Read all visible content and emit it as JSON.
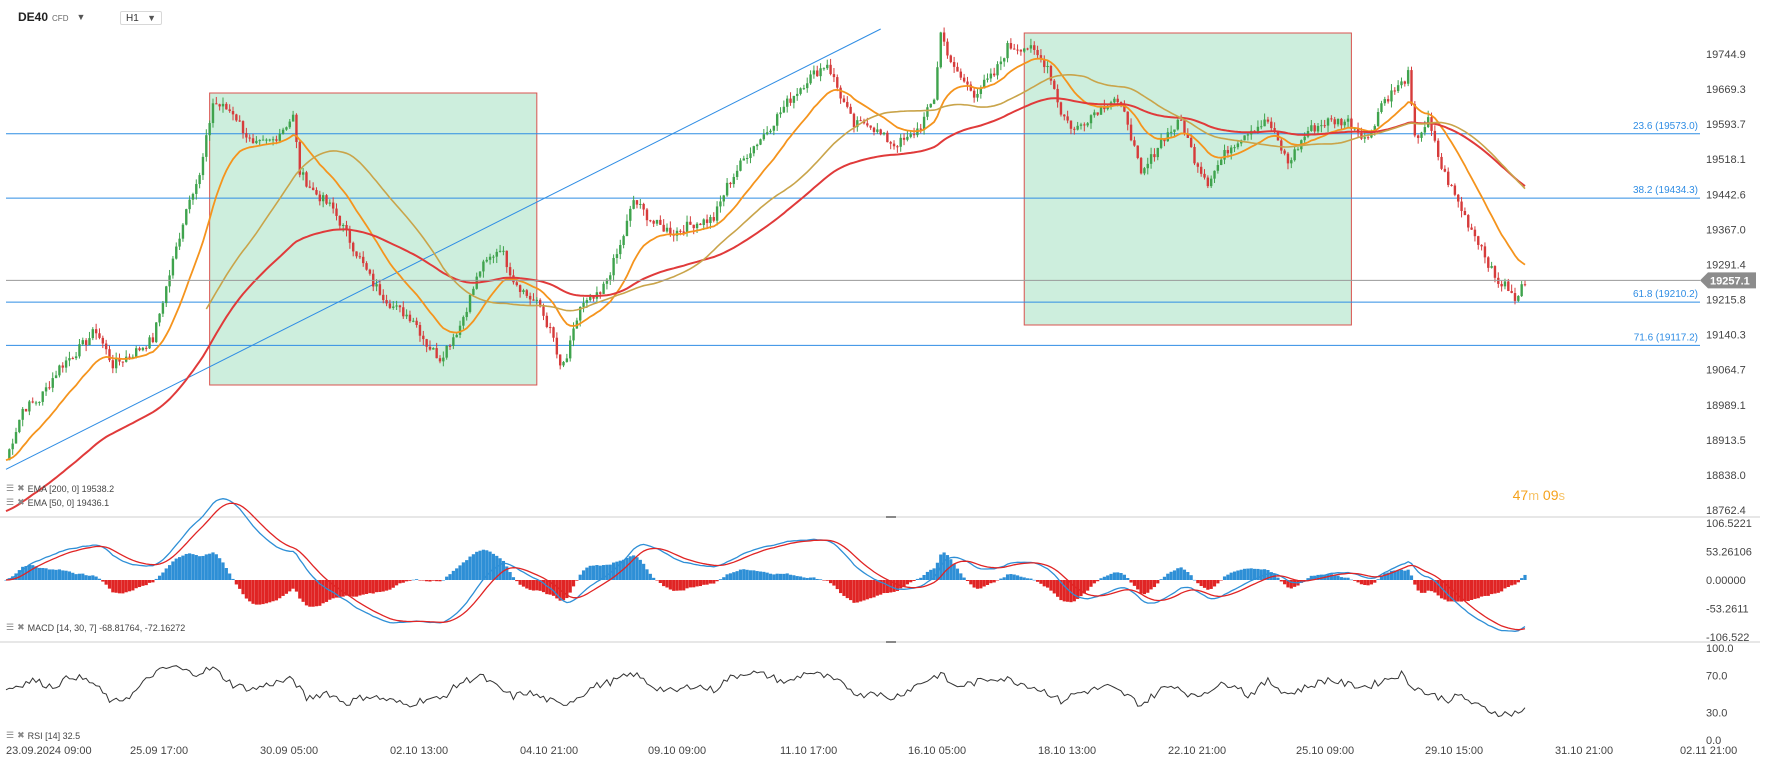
{
  "header": {
    "symbol": "DE40",
    "instrument_type": "CFD",
    "timeframe": "H1"
  },
  "timer": {
    "minutes": "47",
    "min_unit": "m",
    "seconds": "09",
    "sec_unit": "s"
  },
  "legends": {
    "ema200": "EMA [200, 0] 19538.2",
    "ema50": "EMA [50, 0] 19436.1",
    "macd": "MACD [14, 30, 7] -68.81764, -72.16272",
    "rsi": "RSI [14] 32.5"
  },
  "colors": {
    "up": "#3fa34d",
    "down": "#d63b3b",
    "ema50": "#f5941d",
    "ema200": "#e03a3a",
    "slow_ma": "#c9a44a",
    "fib": "#2f8de4",
    "zone_fill": "#cdeedd",
    "zone_border": "#d9534f",
    "macd_pos": "#2e8fd6",
    "macd_neg": "#e02424",
    "rsi": "#333333"
  },
  "chart_data": [
    {
      "type": "candlestick",
      "instrument": "DE40",
      "timeframe": "H1",
      "y_axis_ticks": [
        "19744.9",
        "19669.3",
        "19593.7",
        "19518.1",
        "19442.6",
        "19367.0",
        "19291.4",
        "19215.8",
        "19140.3",
        "19064.7",
        "18989.1",
        "18913.5",
        "18838.0",
        "18762.4"
      ],
      "ylim": [
        18762.4,
        19744.9
      ],
      "last_price": "19257.1",
      "x_axis_ticks": [
        "23.09.2024  09:00",
        "25.09  17:00",
        "30.09  05:00",
        "02.10  13:00",
        "04.10  21:00",
        "09.10  09:00",
        "11.10  17:00",
        "16.10  05:00",
        "18.10  13:00",
        "22.10  21:00",
        "25.10  09:00",
        "29.10  15:00",
        "31.10  21:00",
        "02.11  21:00"
      ],
      "close_path": [
        [
          0,
          18870
        ],
        [
          5,
          18980
        ],
        [
          10,
          19000
        ],
        [
          16,
          19070
        ],
        [
          22,
          19110
        ],
        [
          27,
          19150
        ],
        [
          32,
          19075
        ],
        [
          38,
          19100
        ],
        [
          44,
          19130
        ],
        [
          49,
          19270
        ],
        [
          55,
          19440
        ],
        [
          58,
          19480
        ],
        [
          62,
          19640
        ],
        [
          68,
          19620
        ],
        [
          74,
          19545
        ],
        [
          80,
          19560
        ],
        [
          86,
          19610
        ],
        [
          88,
          19490
        ],
        [
          92,
          19450
        ],
        [
          98,
          19410
        ],
        [
          104,
          19330
        ],
        [
          110,
          19250
        ],
        [
          116,
          19200
        ],
        [
          122,
          19175
        ],
        [
          126,
          19120
        ],
        [
          130,
          19090
        ],
        [
          136,
          19160
        ],
        [
          142,
          19280
        ],
        [
          148,
          19330
        ],
        [
          152,
          19260
        ],
        [
          156,
          19225
        ],
        [
          160,
          19200
        ],
        [
          164,
          19130
        ],
        [
          166,
          19065
        ],
        [
          168,
          19090
        ],
        [
          172,
          19200
        ],
        [
          178,
          19225
        ],
        [
          184,
          19330
        ],
        [
          188,
          19430
        ],
        [
          194,
          19380
        ],
        [
          200,
          19360
        ],
        [
          206,
          19380
        ],
        [
          212,
          19390
        ],
        [
          216,
          19460
        ],
        [
          222,
          19530
        ],
        [
          228,
          19580
        ],
        [
          234,
          19640
        ],
        [
          240,
          19690
        ],
        [
          246,
          19725
        ],
        [
          250,
          19655
        ],
        [
          254,
          19590
        ],
        [
          258,
          19600
        ],
        [
          262,
          19570
        ],
        [
          266,
          19550
        ],
        [
          270,
          19560
        ],
        [
          274,
          19590
        ],
        [
          278,
          19650
        ],
        [
          280,
          19790
        ],
        [
          284,
          19710
        ],
        [
          290,
          19660
        ],
        [
          296,
          19700
        ],
        [
          300,
          19760
        ],
        [
          306,
          19760
        ],
        [
          312,
          19720
        ],
        [
          316,
          19620
        ],
        [
          320,
          19580
        ],
        [
          326,
          19620
        ],
        [
          332,
          19650
        ],
        [
          336,
          19600
        ],
        [
          340,
          19480
        ],
        [
          346,
          19560
        ],
        [
          352,
          19600
        ],
        [
          356,
          19520
        ],
        [
          360,
          19470
        ],
        [
          366,
          19540
        ],
        [
          372,
          19580
        ],
        [
          378,
          19600
        ],
        [
          384,
          19510
        ],
        [
          390,
          19580
        ],
        [
          396,
          19600
        ],
        [
          402,
          19600
        ],
        [
          408,
          19560
        ],
        [
          412,
          19640
        ],
        [
          418,
          19680
        ],
        [
          420,
          19700
        ],
        [
          422,
          19560
        ],
        [
          426,
          19600
        ],
        [
          430,
          19500
        ],
        [
          434,
          19440
        ],
        [
          438,
          19380
        ],
        [
          442,
          19330
        ],
        [
          446,
          19260
        ],
        [
          450,
          19240
        ],
        [
          452,
          19210
        ],
        [
          455,
          19257
        ]
      ]
    },
    {
      "type": "line",
      "name": "MACD [14, 30, 7]",
      "y_axis_ticks": [
        "106.5221",
        "53.26106",
        "0.00000",
        "-53.2611",
        "-106.522"
      ],
      "ylim": [
        -106.522,
        106.5221
      ],
      "last_values": [
        -68.81764,
        -72.16272
      ]
    },
    {
      "type": "line",
      "name": "RSI [14]",
      "y_axis_ticks": [
        "100.0",
        "70.0",
        "30.0",
        "0.0"
      ],
      "ylim": [
        0,
        100
      ],
      "last_value": 32.5,
      "path": [
        [
          0,
          55
        ],
        [
          8,
          65
        ],
        [
          14,
          58
        ],
        [
          20,
          70
        ],
        [
          26,
          62
        ],
        [
          32,
          40
        ],
        [
          38,
          50
        ],
        [
          44,
          72
        ],
        [
          50,
          80
        ],
        [
          56,
          72
        ],
        [
          62,
          78
        ],
        [
          68,
          60
        ],
        [
          74,
          55
        ],
        [
          80,
          62
        ],
        [
          86,
          66
        ],
        [
          90,
          45
        ],
        [
          96,
          52
        ],
        [
          102,
          40
        ],
        [
          108,
          48
        ],
        [
          114,
          44
        ],
        [
          120,
          38
        ],
        [
          126,
          45
        ],
        [
          130,
          44
        ],
        [
          136,
          62
        ],
        [
          142,
          70
        ],
        [
          148,
          55
        ],
        [
          152,
          47
        ],
        [
          156,
          52
        ],
        [
          162,
          44
        ],
        [
          166,
          38
        ],
        [
          170,
          44
        ],
        [
          176,
          58
        ],
        [
          182,
          64
        ],
        [
          188,
          72
        ],
        [
          194,
          58
        ],
        [
          200,
          52
        ],
        [
          206,
          60
        ],
        [
          212,
          54
        ],
        [
          216,
          66
        ],
        [
          222,
          74
        ],
        [
          228,
          70
        ],
        [
          234,
          62
        ],
        [
          240,
          74
        ],
        [
          246,
          68
        ],
        [
          252,
          58
        ],
        [
          256,
          48
        ],
        [
          260,
          54
        ],
        [
          264,
          44
        ],
        [
          268,
          50
        ],
        [
          274,
          62
        ],
        [
          280,
          72
        ],
        [
          284,
          58
        ],
        [
          290,
          62
        ],
        [
          296,
          68
        ],
        [
          300,
          66
        ],
        [
          306,
          60
        ],
        [
          312,
          52
        ],
        [
          316,
          42
        ],
        [
          320,
          50
        ],
        [
          326,
          55
        ],
        [
          330,
          58
        ],
        [
          336,
          48
        ],
        [
          340,
          38
        ],
        [
          346,
          55
        ],
        [
          350,
          60
        ],
        [
          356,
          46
        ],
        [
          362,
          58
        ],
        [
          368,
          62
        ],
        [
          372,
          48
        ],
        [
          378,
          64
        ],
        [
          384,
          50
        ],
        [
          390,
          58
        ],
        [
          396,
          66
        ],
        [
          402,
          60
        ],
        [
          408,
          58
        ],
        [
          412,
          64
        ],
        [
          418,
          72
        ],
        [
          420,
          62
        ],
        [
          426,
          50
        ],
        [
          432,
          44
        ],
        [
          436,
          48
        ],
        [
          440,
          38
        ],
        [
          446,
          30
        ],
        [
          450,
          28
        ],
        [
          455,
          32.5
        ]
      ]
    }
  ],
  "fib_levels": [
    {
      "price": 19573.0,
      "label": "23.6 (19573.0)"
    },
    {
      "price": 19434.3,
      "label": "38.2 (19434.3)"
    },
    {
      "price": 19210.2,
      "label": "61.8 (19210.2)"
    },
    {
      "price": 19117.2,
      "label": "71.6 (19117.2)"
    }
  ]
}
